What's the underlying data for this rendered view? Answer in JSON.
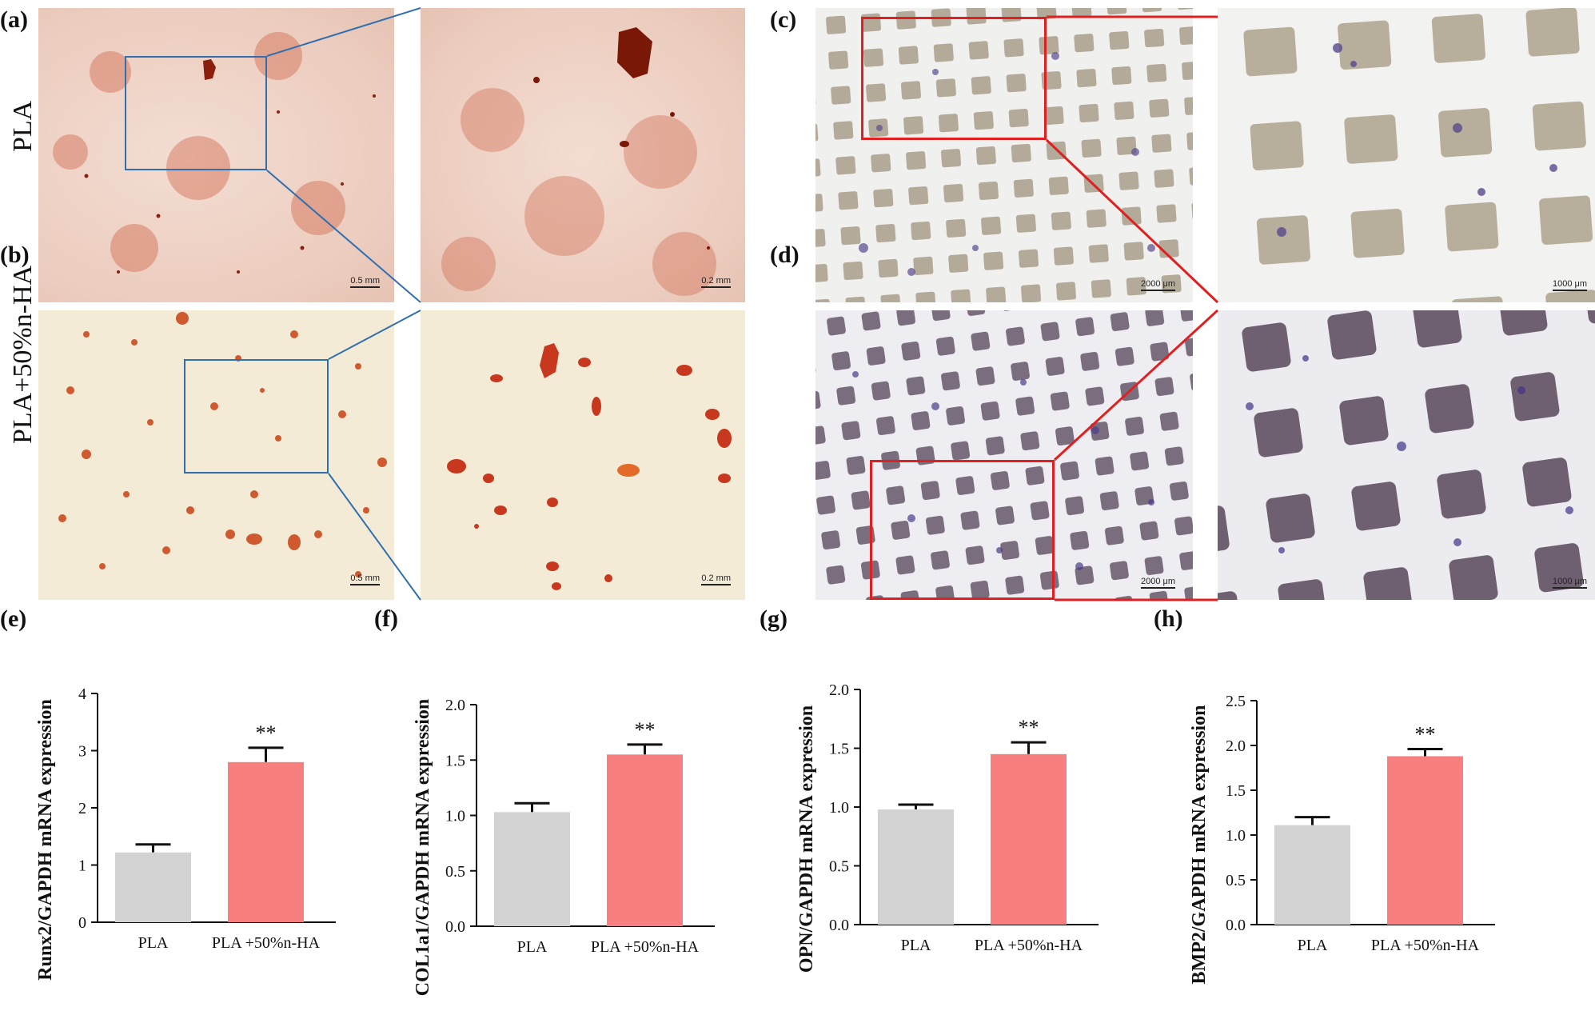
{
  "panels": {
    "a": "(a)",
    "b": "(b)",
    "c": "(c)",
    "d": "(d)",
    "e": "(e)",
    "f": "(f)",
    "g": "(g)",
    "h": "(h)"
  },
  "row_labels": {
    "row1": "PLA",
    "row2": "PLA+50%n-HA"
  },
  "scale_bars": {
    "a_left": "0.5 mm",
    "a_right": "0.2 mm",
    "b_left": "0.5 mm",
    "b_right": "0.2 mm",
    "c_left": "2000 μm",
    "c_right": "1000 μm",
    "d_left": "2000 μm",
    "d_right": "1000 μm"
  },
  "colors": {
    "pla_bar": "#d3d3d3",
    "ha_bar": "#f87f7f",
    "zoom_box_ab": "#2f6fb0",
    "zoom_box_cd": "#e02020",
    "alizarin_stain": "#c84a2a",
    "alp_stain": "#5a4a8e"
  },
  "chart_data": [
    {
      "type": "bar",
      "ylabel": "Runx2/GAPDH mRNA expression",
      "categories": [
        "PLA",
        "PLA +50%n-HA"
      ],
      "values": [
        1.22,
        2.8
      ],
      "errors": [
        0.14,
        0.25
      ],
      "significance": [
        "",
        "**"
      ],
      "ylim": [
        0,
        4
      ],
      "yticks": [
        "0",
        "1",
        "2",
        "3",
        "4"
      ]
    },
    {
      "type": "bar",
      "ylabel": "COL1a1/GAPDH mRNA expression",
      "categories": [
        "PLA",
        "PLA +50%n-HA"
      ],
      "values": [
        1.03,
        1.55
      ],
      "errors": [
        0.08,
        0.09
      ],
      "significance": [
        "",
        "**"
      ],
      "ylim": [
        0,
        2.0
      ],
      "yticks": [
        "0.0",
        "0.5",
        "1.0",
        "1.5",
        "2.0"
      ]
    },
    {
      "type": "bar",
      "ylabel": "OPN/GAPDH mRNA expression",
      "categories": [
        "PLA",
        "PLA +50%n-HA"
      ],
      "values": [
        0.98,
        1.45
      ],
      "errors": [
        0.04,
        0.1
      ],
      "significance": [
        "",
        "**"
      ],
      "ylim": [
        0,
        2.0
      ],
      "yticks": [
        "0.0",
        "0.5",
        "1.0",
        "1.5",
        "2.0"
      ]
    },
    {
      "type": "bar",
      "ylabel": "BMP2/GAPDH mRNA expression",
      "categories": [
        "PLA",
        "PLA +50%n-HA"
      ],
      "values": [
        1.11,
        1.88
      ],
      "errors": [
        0.09,
        0.08
      ],
      "significance": [
        "",
        "**"
      ],
      "ylim": [
        0,
        2.5
      ],
      "yticks": [
        "0.0",
        "0.5",
        "1.0",
        "1.5",
        "2.0",
        "2.5"
      ]
    }
  ]
}
